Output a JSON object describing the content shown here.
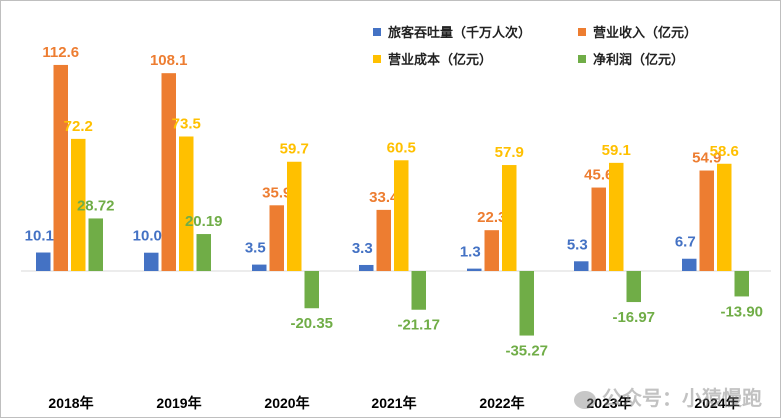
{
  "chart_data": {
    "type": "bar",
    "categories": [
      "2018年",
      "2019年",
      "2020年",
      "2021年",
      "2022年",
      "2023年",
      "2024年"
    ],
    "series": [
      {
        "name": "旅客吞吐量（千万人次）",
        "color": "#4472c4",
        "values": [
          10.1,
          10.0,
          3.5,
          3.3,
          1.3,
          5.3,
          6.7
        ],
        "labels": [
          "10.1",
          "10.0",
          "3.5",
          "3.3",
          "1.3",
          "5.3",
          "6.7"
        ]
      },
      {
        "name": "营业收入（亿元）",
        "color": "#ed7d31",
        "values": [
          112.6,
          108.1,
          35.9,
          33.4,
          22.3,
          45.6,
          54.9
        ],
        "labels": [
          "112.6",
          "108.1",
          "35.9",
          "33.4",
          "22.3",
          "45.6",
          "54.9"
        ]
      },
      {
        "name": "营业成本（亿元）",
        "color": "#ffc000",
        "values": [
          72.2,
          73.5,
          59.7,
          60.5,
          57.9,
          59.1,
          58.6
        ],
        "labels": [
          "72.2",
          "73.5",
          "59.7",
          "60.5",
          "57.9",
          "59.1",
          "58.6"
        ]
      },
      {
        "name": "净利润（亿元）",
        "color": "#70ad47",
        "values": [
          28.72,
          20.19,
          -20.35,
          -21.17,
          -35.27,
          -16.97,
          -13.9
        ],
        "labels": [
          "28.72",
          "20.19",
          "-20.35",
          "-21.17",
          "-35.27",
          "-16.97",
          "-13.90"
        ]
      }
    ],
    "legend_position": "top-right",
    "grid": false
  },
  "watermark": {
    "text": "公众号：小猿慢跑"
  }
}
